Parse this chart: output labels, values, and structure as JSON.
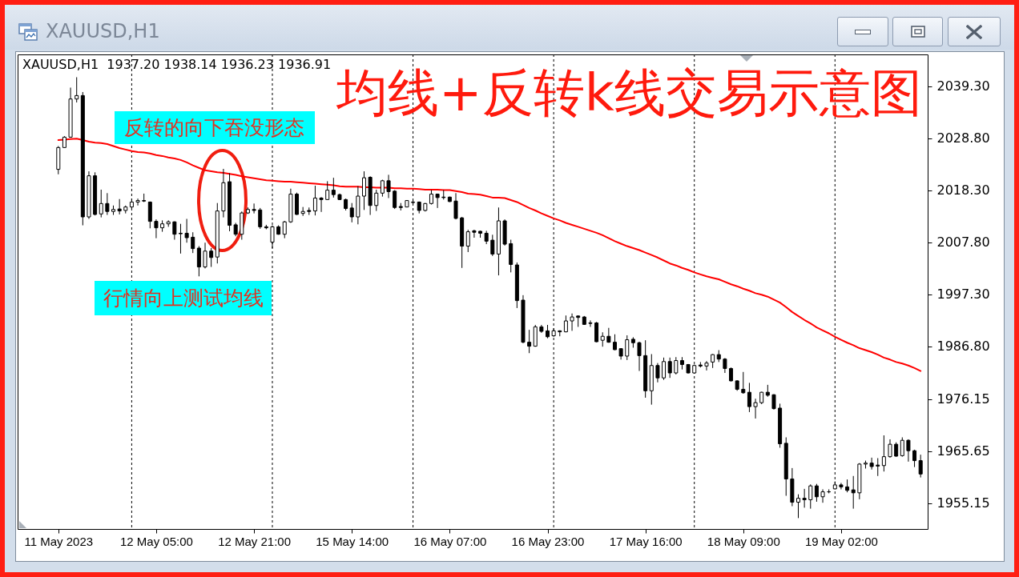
{
  "chart_data": {
    "type": "candlestick",
    "title": "均线+反转k线交易示意图",
    "subtitle": "XAUUSD,H1  1937.20 1938.14 1936.23 1936.91",
    "annotations": [
      "XAUUSD,H1",
      "反转的向下吞没形态",
      "行情向上测试均线"
    ],
    "categories": [
      "11 May 2023",
      null,
      null,
      null,
      null,
      null,
      null,
      null,
      null,
      null,
      null,
      null,
      null,
      null,
      null,
      null,
      "12 May 05:00",
      null,
      null,
      null,
      null,
      null,
      null,
      null,
      null,
      null,
      null,
      null,
      null,
      null,
      null,
      null,
      "12 May 21:00",
      null,
      null,
      null,
      null,
      null,
      null,
      null,
      null,
      null,
      null,
      null,
      null,
      null,
      null,
      null,
      "15 May 14:00",
      null,
      null,
      null,
      null,
      null,
      null,
      null,
      null,
      null,
      null,
      null,
      null,
      null,
      null,
      null,
      "16 May 07:00",
      null,
      null,
      null,
      null,
      null,
      null,
      null,
      null,
      null,
      null,
      null,
      null,
      null,
      null,
      null,
      "16 May 23:00",
      null,
      null,
      null,
      null,
      null,
      null,
      null,
      null,
      null,
      null,
      null,
      null,
      null,
      null,
      null,
      "17 May 16:00",
      null,
      null,
      null,
      null,
      null,
      null,
      null,
      null,
      null,
      null,
      null,
      null,
      null,
      null,
      null,
      "18 May 09:00",
      null,
      null,
      null,
      null,
      null,
      null,
      null,
      null,
      null,
      null,
      null,
      null,
      null,
      null,
      null,
      "19 May 02:00",
      null,
      null,
      null,
      null,
      null,
      null,
      null,
      null,
      null,
      null,
      null,
      null,
      null
    ],
    "ohlc": [
      [
        2022.5,
        2027.2,
        2021.5,
        2026.9
      ],
      [
        2026.9,
        2029.2,
        2026.8,
        2029.0
      ],
      [
        2029.0,
        2039.0,
        2028.9,
        2036.7
      ],
      [
        2036.7,
        2041.1,
        2036.0,
        2037.4
      ],
      [
        2037.4,
        2038.1,
        2011.2,
        2012.9
      ],
      [
        2012.9,
        2022.1,
        2012.5,
        2021.2
      ],
      [
        2021.2,
        2021.9,
        2013.2,
        2013.4
      ],
      [
        2013.5,
        2018.4,
        2012.8,
        2015.6
      ],
      [
        2015.6,
        2017.7,
        2013.3,
        2014.0
      ],
      [
        2014.0,
        2015.2,
        2013.3,
        2014.4
      ],
      [
        2014.5,
        2016.5,
        2013.4,
        2014.1
      ],
      [
        2014.2,
        2015.2,
        2013.6,
        2014.9
      ],
      [
        2014.9,
        2016.6,
        2014.6,
        2015.9
      ],
      [
        2015.9,
        2016.6,
        2015.2,
        2016.2
      ],
      [
        2016.2,
        2017.6,
        2015.9,
        2016.1
      ],
      [
        2015.9,
        2016.0,
        2010.6,
        2012.0
      ],
      [
        2012.0,
        2012.4,
        2008.6,
        2010.7
      ],
      [
        2010.7,
        2012.2,
        2009.9,
        2011.5
      ],
      [
        2011.5,
        2012.2,
        2010.9,
        2011.9
      ],
      [
        2011.9,
        2012.0,
        2008.3,
        2009.4
      ],
      [
        2009.6,
        2011.5,
        2005.5,
        2009.5
      ],
      [
        2009.6,
        2012.5,
        2007.7,
        2008.7
      ],
      [
        2008.8,
        2009.8,
        2005.6,
        2006.5
      ],
      [
        2006.6,
        2007.0,
        2000.9,
        2002.8
      ],
      [
        2002.8,
        2007.7,
        2002.5,
        2006.0
      ],
      [
        2006.0,
        2006.6,
        2002.8,
        2004.7
      ],
      [
        2004.8,
        2015.7,
        2003.5,
        2014.1
      ],
      [
        2014.1,
        2022.6,
        2012.8,
        2019.8
      ],
      [
        2020.0,
        2021.7,
        2010.0,
        2011.2
      ],
      [
        2011.3,
        2011.7,
        2009.0,
        2009.4
      ],
      [
        2009.4,
        2014.0,
        2008.3,
        2013.7
      ],
      [
        2013.7,
        2014.8,
        2013.5,
        2014.4
      ],
      [
        2014.4,
        2015.6,
        2013.6,
        2014.2
      ],
      [
        2014.3,
        2014.7,
        2010.5,
        2010.9
      ],
      [
        2010.9,
        2011.3,
        2010.4,
        2010.7
      ],
      [
        2007.8,
        2011.2,
        2006.6,
        2010.9
      ],
      [
        2010.9,
        2011.2,
        2009.3,
        2009.4
      ],
      [
        2009.4,
        2012.1,
        2008.6,
        2011.9
      ],
      [
        2011.9,
        2018.6,
        2011.7,
        2017.5
      ],
      [
        2017.5,
        2017.8,
        2013.3,
        2013.4
      ],
      [
        2013.6,
        2014.9,
        2013.1,
        2014.0
      ],
      [
        2014.2,
        2014.8,
        2013.3,
        2014.0
      ],
      [
        2014.1,
        2019.2,
        2013.2,
        2016.7
      ],
      [
        2016.7,
        2016.9,
        2013.9,
        2016.4
      ],
      [
        2016.4,
        2020.1,
        2016.3,
        2018.3
      ],
      [
        2018.3,
        2020.8,
        2016.8,
        2017.4
      ],
      [
        2017.4,
        2017.6,
        2016.3,
        2016.4
      ],
      [
        2016.4,
        2016.6,
        2014.2,
        2014.6
      ],
      [
        2014.7,
        2015.7,
        2011.8,
        2012.9
      ],
      [
        2012.9,
        2019.1,
        2011.4,
        2017.1
      ],
      [
        2017.1,
        2022.1,
        2014.3,
        2020.8
      ],
      [
        2020.9,
        2021.1,
        2013.3,
        2015.2
      ],
      [
        2015.2,
        2018.4,
        2014.1,
        2017.7
      ],
      [
        2017.7,
        2020.4,
        2017.0,
        2020.2
      ],
      [
        2020.2,
        2021.4,
        2016.7,
        2018.0
      ],
      [
        2018.1,
        2018.3,
        2014.5,
        2014.8
      ],
      [
        2015.0,
        2015.7,
        2014.2,
        2014.8
      ],
      [
        2014.9,
        2016.3,
        2014.9,
        2016.2
      ],
      [
        2015.8,
        2016.3,
        2015.5,
        2015.9
      ],
      [
        2015.9,
        2016.0,
        2013.6,
        2014.2
      ],
      [
        2014.2,
        2015.7,
        2014.0,
        2015.6
      ],
      [
        2015.6,
        2018.3,
        2015.4,
        2017.5
      ],
      [
        2017.5,
        2017.6,
        2014.7,
        2016.8
      ],
      [
        2016.9,
        2018.3,
        2016.4,
        2016.8
      ],
      [
        2016.9,
        2017.0,
        2015.9,
        2016.0
      ],
      [
        2016.1,
        2017.7,
        2012.4,
        2012.6
      ],
      [
        2012.7,
        2012.9,
        2002.6,
        2007.0
      ],
      [
        2007.0,
        2010.3,
        2005.8,
        2009.9
      ],
      [
        2010.1,
        2010.3,
        2008.7,
        2009.8
      ],
      [
        2010.0,
        2010.1,
        2008.7,
        2009.6
      ],
      [
        2009.6,
        2010.1,
        2007.4,
        2008.0
      ],
      [
        2008.2,
        2009.3,
        2005.0,
        2005.4
      ],
      [
        2005.4,
        2014.8,
        2001.1,
        2012.1
      ],
      [
        2012.1,
        2012.4,
        2007.1,
        2007.4
      ],
      [
        2007.5,
        2008.3,
        2001.7,
        2003.3
      ],
      [
        2003.2,
        2003.7,
        1994.5,
        1996.0
      ],
      [
        1996.1,
        1997.1,
        1987.4,
        1987.6
      ],
      [
        1987.6,
        1990.1,
        1985.4,
        1986.8
      ],
      [
        1986.8,
        1991.1,
        1986.7,
        1990.7
      ],
      [
        1990.7,
        1991.1,
        1989.5,
        1989.8
      ],
      [
        1989.9,
        1991.1,
        1988.4,
        1988.7
      ],
      [
        1988.9,
        1990.4,
        1988.7,
        1989.9
      ],
      [
        1989.9,
        1990.0,
        1988.8,
        1989.7
      ],
      [
        1989.7,
        1993.0,
        1989.6,
        1991.9
      ],
      [
        1991.9,
        1993.4,
        1989.9,
        1992.7
      ],
      [
        1992.9,
        1993.0,
        1990.7,
        1992.6
      ],
      [
        1992.7,
        1992.9,
        1991.1,
        1991.2
      ],
      [
        1991.5,
        1992.0,
        1990.7,
        1991.4
      ],
      [
        1991.5,
        1991.7,
        1987.6,
        1987.7
      ],
      [
        1988.0,
        1989.6,
        1986.7,
        1988.8
      ],
      [
        1988.8,
        1990.5,
        1987.5,
        1987.6
      ],
      [
        1987.6,
        1989.2,
        1986.0,
        1986.1
      ],
      [
        1986.3,
        1986.4,
        1984.1,
        1984.8
      ],
      [
        1984.8,
        1989.0,
        1984.0,
        1988.1
      ],
      [
        1988.2,
        1988.6,
        1986.5,
        1987.5
      ],
      [
        1987.5,
        1987.7,
        1981.8,
        1984.9
      ],
      [
        1984.9,
        1988.0,
        1976.4,
        1977.8
      ],
      [
        1977.8,
        1985.2,
        1975.0,
        1982.9
      ],
      [
        1982.9,
        1983.4,
        1979.5,
        1980.4
      ],
      [
        1980.4,
        1984.5,
        1980.0,
        1983.7
      ],
      [
        1983.7,
        1984.5,
        1980.4,
        1981.4
      ],
      [
        1981.4,
        1984.6,
        1981.1,
        1983.9
      ],
      [
        1983.9,
        1984.6,
        1982.1,
        1983.1
      ],
      [
        1983.1,
        1983.2,
        1981.3,
        1981.4
      ],
      [
        1981.4,
        1983.1,
        1981.3,
        1982.9
      ],
      [
        1983.0,
        1983.6,
        1982.5,
        1982.8
      ],
      [
        1982.8,
        1983.8,
        1981.9,
        1983.4
      ],
      [
        1983.6,
        1985.2,
        1982.4,
        1985.1
      ],
      [
        1985.1,
        1986.0,
        1983.6,
        1984.2
      ],
      [
        1984.2,
        1984.4,
        1981.4,
        1982.3
      ],
      [
        1982.3,
        1982.5,
        1979.7,
        1979.8
      ],
      [
        1979.8,
        1979.9,
        1977.8,
        1978.1
      ],
      [
        1978.1,
        1981.6,
        1977.2,
        1977.4
      ],
      [
        1977.5,
        1979.4,
        1973.5,
        1974.6
      ],
      [
        1974.6,
        1976.2,
        1972.2,
        1975.4
      ],
      [
        1975.4,
        1977.6,
        1975.1,
        1977.5
      ],
      [
        1977.5,
        1979.0,
        1976.6,
        1976.9
      ],
      [
        1977.0,
        1977.1,
        1974.0,
        1974.2
      ],
      [
        1974.3,
        1975.2,
        1966.3,
        1967.1
      ],
      [
        1967.2,
        1968.4,
        1956.6,
        1960.0
      ],
      [
        1960.0,
        1962.2,
        1954.5,
        1955.3
      ],
      [
        1955.3,
        1956.9,
        1952.1,
        1956.1
      ],
      [
        1956.1,
        1958.0,
        1954.2,
        1955.8
      ],
      [
        1955.8,
        1958.9,
        1954.0,
        1958.6
      ],
      [
        1958.6,
        1959.0,
        1955.4,
        1956.4
      ],
      [
        1956.4,
        1957.9,
        1955.2,
        1957.4
      ],
      [
        1957.4,
        1957.9,
        1957.1,
        1957.4
      ],
      [
        1958.0,
        1959.5,
        1957.9,
        1958.8
      ],
      [
        1958.8,
        1959.2,
        1957.9,
        1958.4
      ],
      [
        1958.4,
        1959.9,
        1957.3,
        1957.7
      ],
      [
        1957.8,
        1960.6,
        1954.0,
        1957.2
      ],
      [
        1957.2,
        1963.2,
        1955.9,
        1963.0
      ],
      [
        1963.0,
        1963.7,
        1962.1,
        1963.2
      ],
      [
        1963.2,
        1964.3,
        1961.9,
        1962.5
      ],
      [
        1962.8,
        1964.2,
        1960.6,
        1962.6
      ],
      [
        1962.7,
        1968.8,
        1961.5,
        1964.5
      ],
      [
        1964.5,
        1968.0,
        1964.3,
        1967.0
      ],
      [
        1967.0,
        1967.4,
        1964.5,
        1964.6
      ],
      [
        1964.7,
        1968.4,
        1964.5,
        1967.8
      ],
      [
        1967.8,
        1968.0,
        1963.5,
        1965.7
      ],
      [
        1965.7,
        1965.9,
        1962.4,
        1963.7
      ],
      [
        1963.7,
        1964.9,
        1960.3,
        1961.0
      ]
    ],
    "series": [
      {
        "type": "line",
        "color": "#ff0000",
        "values": [
          2028.4,
          2028.5,
          2028.6,
          2028.7,
          2028.4,
          2028.1,
          2027.9,
          2027.8,
          2027.6,
          2027.2,
          2026.8,
          2026.5,
          2026.2,
          2026.0,
          2025.9,
          2025.7,
          2025.4,
          2025.2,
          2024.9,
          2024.7,
          2024.4,
          2023.9,
          2023.3,
          2022.8,
          2022.3,
          2022.1,
          2021.9,
          2021.8,
          2021.6,
          2021.4,
          2021.1,
          2020.9,
          2020.7,
          2020.5,
          2020.3,
          2020.2,
          2020.1,
          2020.0,
          2020.0,
          2019.9,
          2019.8,
          2019.7,
          2019.6,
          2019.5,
          2019.4,
          2019.3,
          2019.1,
          2019.0,
          2019.0,
          2019.0,
          2018.9,
          2018.9,
          2018.8,
          2018.8,
          2018.8,
          2018.7,
          2018.7,
          2018.6,
          2018.6,
          2018.5,
          2018.4,
          2018.4,
          2018.4,
          2018.3,
          2018.3,
          2018.1,
          2017.9,
          2017.6,
          2017.5,
          2017.4,
          2017.1,
          2016.8,
          2016.8,
          2016.7,
          2016.3,
          2015.9,
          2015.3,
          2014.7,
          2014.2,
          2013.6,
          2013.1,
          2012.6,
          2012.2,
          2011.7,
          2011.3,
          2010.9,
          2010.5,
          2010.1,
          2009.7,
          2009.2,
          2008.6,
          2008.0,
          2007.5,
          2007.0,
          2006.6,
          2006.2,
          2005.7,
          2005.2,
          2004.7,
          2004.1,
          2003.5,
          2003.1,
          2002.6,
          2002.2,
          2001.7,
          2001.3,
          2000.9,
          2000.6,
          2000.3,
          1999.8,
          1999.3,
          1998.9,
          1998.4,
          1998.0,
          1997.5,
          1997.2,
          1996.8,
          1996.2,
          1995.6,
          1994.7,
          1993.7,
          1992.9,
          1992.1,
          1991.4,
          1990.6,
          1990.0,
          1989.4,
          1988.7,
          1988.1,
          1987.5,
          1987.0,
          1986.4,
          1986.0,
          1985.6,
          1985.1,
          1984.5,
          1984.1,
          1983.6,
          1983.3,
          1982.9,
          1982.4,
          1981.8
        ]
      }
    ],
    "ylim": [
      1949.9,
      2045.7
    ],
    "yticks": [
      {
        "value": 2039.3,
        "label": "2039.30"
      },
      {
        "value": 2028.8,
        "label": "2028.80"
      },
      {
        "value": 2018.3,
        "label": "2018.30"
      },
      {
        "value": 2007.8,
        "label": "2007.80"
      },
      {
        "value": 1997.3,
        "label": "1997.30"
      },
      {
        "value": 1986.8,
        "label": "1986.80"
      },
      1976.15,
      1965.65,
      1955.15
    ]
  }
}
